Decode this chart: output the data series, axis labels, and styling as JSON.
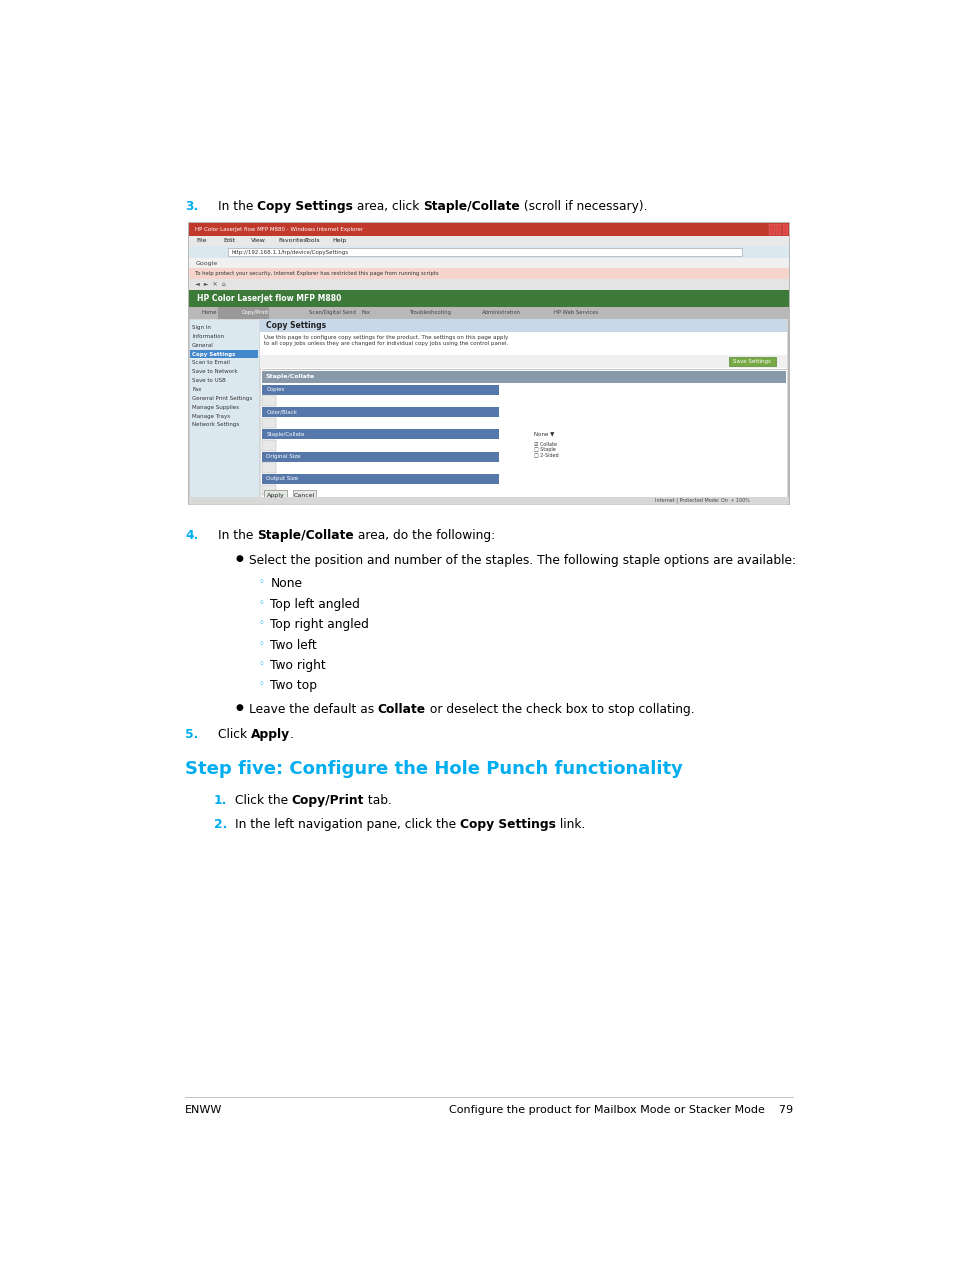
{
  "background_color": "#ffffff",
  "page_width": 9.54,
  "page_height": 12.7,
  "cyan_color": "#00AEEF",
  "black_color": "#000000",
  "footer_left": "ENWW",
  "footer_right": "Configure the product for Mailbox Mode or Stacker Mode",
  "footer_page": "79"
}
